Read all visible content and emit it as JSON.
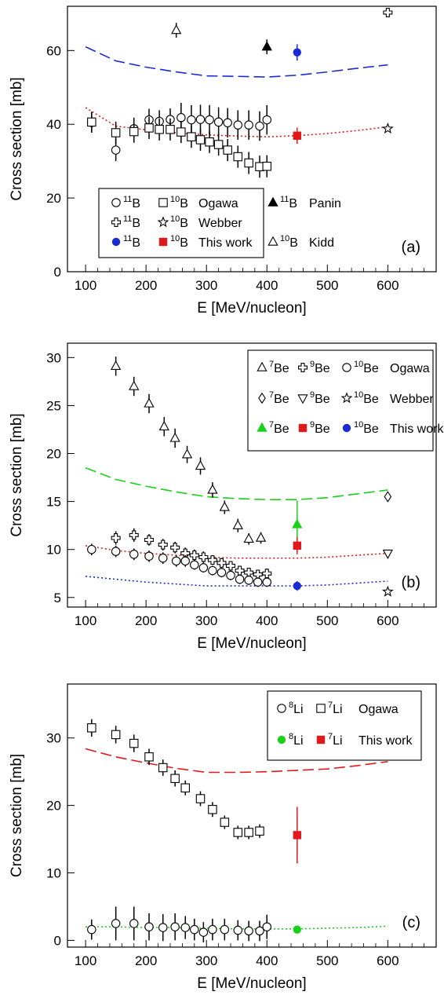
{
  "chart_data": [
    {
      "type": "scatter",
      "panel_label": "(a)",
      "xlabel": "E [MeV/nucleon]",
      "ylabel": "Cross section [mb]",
      "xlim": [
        70,
        680
      ],
      "ylim": [
        0,
        72
      ],
      "xticks": [
        100,
        200,
        300,
        400,
        500,
        600
      ],
      "yticks": [
        0,
        20,
        40,
        60
      ],
      "grid": false,
      "legend_placement": "bottom-center",
      "legend_rows": [
        [
          {
            "sym": "circle-open",
            "sup": "11",
            "el": "B"
          },
          {
            "sym": "square-open",
            "sup": "10",
            "el": "B"
          },
          {
            "text": "Ogawa"
          },
          {
            "sym": "triangle-filled",
            "sup": "11",
            "el": "B"
          },
          {
            "text": "Panin"
          }
        ],
        [
          {
            "sym": "cross-open",
            "sup": "11",
            "el": "B"
          },
          {
            "sym": "star-open",
            "sup": "10",
            "el": "B"
          },
          {
            "text": "Webber"
          }
        ],
        [
          {
            "sym": "circle-blue",
            "sup": "11",
            "el": "B"
          },
          {
            "sym": "square-red",
            "sup": "10",
            "el": "B"
          },
          {
            "text": "This work"
          },
          {
            "sym": "triangle-open",
            "sup": "10",
            "el": "B"
          },
          {
            "text": "Kidd"
          }
        ]
      ],
      "curves": [
        {
          "style": "dashed",
          "color": "#1a2bd6",
          "x": [
            100,
            150,
            200,
            250,
            300,
            350,
            400,
            450,
            500,
            550,
            600
          ],
          "y": [
            61,
            57.2,
            55.5,
            54.2,
            53.1,
            53,
            52.8,
            53.3,
            54.2,
            55.2,
            56.1
          ]
        },
        {
          "style": "dotted",
          "color": "#e0191b",
          "x": [
            100,
            150,
            200,
            250,
            300,
            350,
            400,
            450,
            500,
            550,
            600
          ],
          "y": [
            44.5,
            39.5,
            38.5,
            37.7,
            37.1,
            36.8,
            36.6,
            36.9,
            37.5,
            38.3,
            39.3
          ]
        }
      ],
      "series": [
        {
          "marker": "circle-open",
          "x": [
            110,
            150,
            180,
            205,
            222,
            240,
            258,
            275,
            290,
            305,
            320,
            335,
            352,
            370,
            388,
            400
          ],
          "y": [
            40.5,
            33,
            38.8,
            41.2,
            40.8,
            41.3,
            41.8,
            41.2,
            41.3,
            41.2,
            40.6,
            40.4,
            39.8,
            39.8,
            39.5,
            41.2
          ],
          "err": [
            2.8,
            3,
            3,
            3,
            3,
            3,
            4,
            4,
            4,
            4,
            4,
            4,
            4,
            4,
            4,
            4
          ]
        },
        {
          "marker": "square-open",
          "x": [
            110,
            150,
            180,
            205,
            222,
            240,
            258,
            275,
            290,
            305,
            320,
            335,
            352,
            370,
            388,
            400
          ],
          "y": [
            40.6,
            37.7,
            38,
            39,
            38.6,
            38.6,
            37.9,
            36.6,
            35.8,
            35.2,
            34.5,
            33,
            31.2,
            29.5,
            28.5,
            28.6
          ],
          "err": [
            2.8,
            3,
            3,
            3,
            3,
            3,
            3,
            3,
            3,
            3,
            3,
            3,
            3,
            3,
            3,
            3
          ]
        },
        {
          "marker": "cross-open",
          "x": [
            600
          ],
          "y": [
            70.3
          ],
          "err": [
            0
          ]
        },
        {
          "marker": "star-open",
          "x": [
            600
          ],
          "y": [
            38.8
          ],
          "err": [
            0
          ]
        },
        {
          "marker": "triangle-filled",
          "x": [
            400
          ],
          "y": [
            61
          ],
          "err": [
            2
          ]
        },
        {
          "marker": "triangle-open",
          "x": [
            250
          ],
          "y": [
            65.5
          ],
          "err": [
            2
          ]
        },
        {
          "marker": "circle-blue",
          "x": [
            450
          ],
          "y": [
            59.5
          ],
          "err": [
            2.2
          ]
        },
        {
          "marker": "square-red",
          "x": [
            450
          ],
          "y": [
            36.9
          ],
          "err": [
            2.2
          ]
        }
      ]
    },
    {
      "type": "scatter",
      "panel_label": "(b)",
      "xlabel": "E [MeV/nucleon]",
      "ylabel": "Cross section [mb]",
      "xlim": [
        70,
        680
      ],
      "ylim": [
        4,
        31.5
      ],
      "xticks": [
        100,
        200,
        300,
        400,
        500,
        600
      ],
      "yticks": [
        5,
        10,
        15,
        20,
        25,
        30
      ],
      "grid": false,
      "legend_placement": "top-right",
      "legend_rows": [
        [
          {
            "sym": "triangle-open",
            "sup": "7",
            "el": "Be"
          },
          {
            "sym": "cross-open",
            "sup": "9",
            "el": "Be"
          },
          {
            "sym": "circle-open",
            "sup": "10",
            "el": "Be"
          },
          {
            "text": "Ogawa"
          }
        ],
        [
          {
            "sym": "diamond-open",
            "sup": "7",
            "el": "Be"
          },
          {
            "sym": "triangle-down-open",
            "sup": "9",
            "el": "Be"
          },
          {
            "sym": "star-open",
            "sup": "10",
            "el": "Be"
          },
          {
            "text": "Webber"
          }
        ],
        [
          {
            "sym": "triangle-green",
            "sup": "7",
            "el": "Be"
          },
          {
            "sym": "square-red",
            "sup": "9",
            "el": "Be"
          },
          {
            "sym": "circle-blue",
            "sup": "10",
            "el": "Be"
          },
          {
            "text": "This work"
          }
        ]
      ],
      "curves": [
        {
          "style": "dashed",
          "color": "#19d119",
          "x": [
            100,
            150,
            200,
            250,
            300,
            350,
            400,
            450,
            500,
            550,
            600
          ],
          "y": [
            18.5,
            17.3,
            16.6,
            16,
            15.5,
            15.3,
            15.2,
            15.2,
            15.4,
            15.8,
            16.2
          ]
        },
        {
          "style": "dotted",
          "color": "#e0191b",
          "x": [
            100,
            150,
            200,
            250,
            300,
            350,
            400,
            450,
            500,
            550,
            600
          ],
          "y": [
            10.4,
            9.9,
            9.6,
            9.4,
            9.2,
            9.1,
            9.1,
            9.1,
            9.2,
            9.4,
            9.6
          ]
        },
        {
          "style": "dotted",
          "color": "#1a2bd6",
          "x": [
            100,
            150,
            200,
            250,
            300,
            350,
            400,
            450,
            500,
            550,
            600
          ],
          "y": [
            7.2,
            6.9,
            6.6,
            6.4,
            6.2,
            6.2,
            6.2,
            6.2,
            6.3,
            6.5,
            6.7
          ]
        }
      ],
      "series": [
        {
          "marker": "triangle-open",
          "x": [
            150,
            180,
            205,
            230,
            248,
            268,
            290,
            310,
            330,
            352,
            370,
            390
          ],
          "y": [
            29.1,
            27,
            25.2,
            22.8,
            21.6,
            19.9,
            18.7,
            16.2,
            14.4,
            12.5,
            11.1,
            11.2
          ],
          "err": [
            1,
            1,
            1,
            1,
            1,
            0.9,
            0.9,
            0.8,
            0.7,
            0.7,
            0.6,
            0.6
          ]
        },
        {
          "marker": "cross-open",
          "x": [
            150,
            180,
            205,
            228,
            248,
            265,
            280,
            295,
            310,
            325,
            340,
            355,
            370,
            385,
            400
          ],
          "y": [
            11.2,
            11.5,
            11,
            10.5,
            10.2,
            9.6,
            9.4,
            9.2,
            8.9,
            8.6,
            8.3,
            7.8,
            7.6,
            7.4,
            7.5
          ],
          "err": [
            0.7,
            0.7,
            0.6,
            0.6,
            0.6,
            0.6,
            0.6,
            0.6,
            0.5,
            0.5,
            0.5,
            0.5,
            0.5,
            0.5,
            0.5
          ]
        },
        {
          "marker": "circle-open",
          "x": [
            110,
            150,
            180,
            205,
            228,
            250,
            265,
            280,
            295,
            310,
            325,
            340,
            355,
            370,
            385,
            400
          ],
          "y": [
            10,
            9.8,
            9.5,
            9.3,
            9.1,
            8.8,
            8.8,
            8.4,
            8.1,
            7.8,
            7.6,
            7.3,
            6.9,
            6.8,
            6.6,
            6.6
          ],
          "err": [
            0.6,
            0.6,
            0.6,
            0.6,
            0.6,
            0.6,
            0.6,
            0.5,
            0.5,
            0.5,
            0.5,
            0.5,
            0.5,
            0.5,
            0.5,
            0.5
          ]
        },
        {
          "marker": "diamond-open",
          "x": [
            600
          ],
          "y": [
            15.5
          ],
          "err": [
            0
          ]
        },
        {
          "marker": "triangle-down-open",
          "x": [
            600
          ],
          "y": [
            9.6
          ],
          "err": [
            0
          ]
        },
        {
          "marker": "star-open",
          "x": [
            600
          ],
          "y": [
            5.6
          ],
          "err": [
            0
          ]
        },
        {
          "marker": "triangle-green",
          "x": [
            450
          ],
          "y": [
            12.6
          ],
          "err": [
            2.5
          ]
        },
        {
          "marker": "square-red",
          "x": [
            450
          ],
          "y": [
            10.4
          ],
          "err": [
            0.9
          ]
        },
        {
          "marker": "circle-blue",
          "x": [
            450
          ],
          "y": [
            6.2
          ],
          "err": [
            0.5
          ]
        }
      ]
    },
    {
      "type": "scatter",
      "panel_label": "(c)",
      "xlabel": "E [MeV/nucleon]",
      "ylabel": "Cross section [mb]",
      "xlim": [
        70,
        680
      ],
      "ylim": [
        -1,
        38
      ],
      "xticks": [
        100,
        200,
        300,
        400,
        500,
        600
      ],
      "yticks": [
        0,
        10,
        20,
        30
      ],
      "grid": false,
      "legend_placement": "top-right",
      "legend_rows": [
        [
          {
            "sym": "circle-open",
            "sup": "8",
            "el": "Li"
          },
          {
            "sym": "square-open",
            "sup": "7",
            "el": "Li"
          },
          {
            "text": "Ogawa"
          }
        ],
        [
          {
            "sym": "circle-green",
            "sup": "8",
            "el": "Li"
          },
          {
            "sym": "square-red",
            "sup": "7",
            "el": "Li"
          },
          {
            "text": "This work"
          }
        ]
      ],
      "curves": [
        {
          "style": "dashed",
          "color": "#e0191b",
          "x": [
            100,
            150,
            200,
            250,
            300,
            350,
            400,
            450,
            500,
            550,
            600
          ],
          "y": [
            28.4,
            27.2,
            26.3,
            25.5,
            24.9,
            24.9,
            25,
            25.2,
            25.4,
            25.9,
            26.5
          ]
        },
        {
          "style": "dotted",
          "color": "#19d119",
          "x": [
            100,
            150,
            200,
            250,
            300,
            350,
            400,
            450,
            500,
            550,
            600
          ],
          "y": [
            2,
            2,
            1.9,
            1.9,
            1.8,
            1.7,
            1.7,
            1.7,
            1.8,
            1.9,
            2.1
          ]
        }
      ],
      "series": [
        {
          "marker": "square-open",
          "x": [
            110,
            150,
            180,
            205,
            228,
            248,
            265,
            290,
            310,
            330,
            352,
            370,
            388
          ],
          "y": [
            31.5,
            30.5,
            29.2,
            27.2,
            25.6,
            24,
            22.6,
            21,
            19.4,
            17.5,
            16,
            16,
            16.2
          ],
          "err": [
            1.3,
            1.3,
            1.3,
            1.2,
            1.2,
            1.2,
            1.1,
            1.1,
            1.1,
            1,
            1,
            1,
            1
          ]
        },
        {
          "marker": "circle-open",
          "x": [
            110,
            150,
            180,
            205,
            228,
            248,
            265,
            280,
            295,
            310,
            330,
            352,
            370,
            388,
            400
          ],
          "y": [
            1.6,
            2.5,
            2.5,
            2,
            1.9,
            2,
            1.9,
            1.6,
            1.2,
            1.6,
            1.6,
            1.5,
            1.4,
            1.4,
            2
          ],
          "err": [
            1.5,
            2.5,
            2.5,
            2,
            2,
            2,
            1.7,
            1.6,
            1.5,
            1.6,
            1.6,
            1.5,
            1.5,
            1.5,
            1.8
          ]
        },
        {
          "marker": "circle-green",
          "x": [
            450
          ],
          "y": [
            1.6
          ],
          "err": [
            0
          ]
        },
        {
          "marker": "square-red",
          "x": [
            450
          ],
          "y": [
            15.6
          ],
          "err": [
            4.2
          ]
        }
      ]
    }
  ]
}
